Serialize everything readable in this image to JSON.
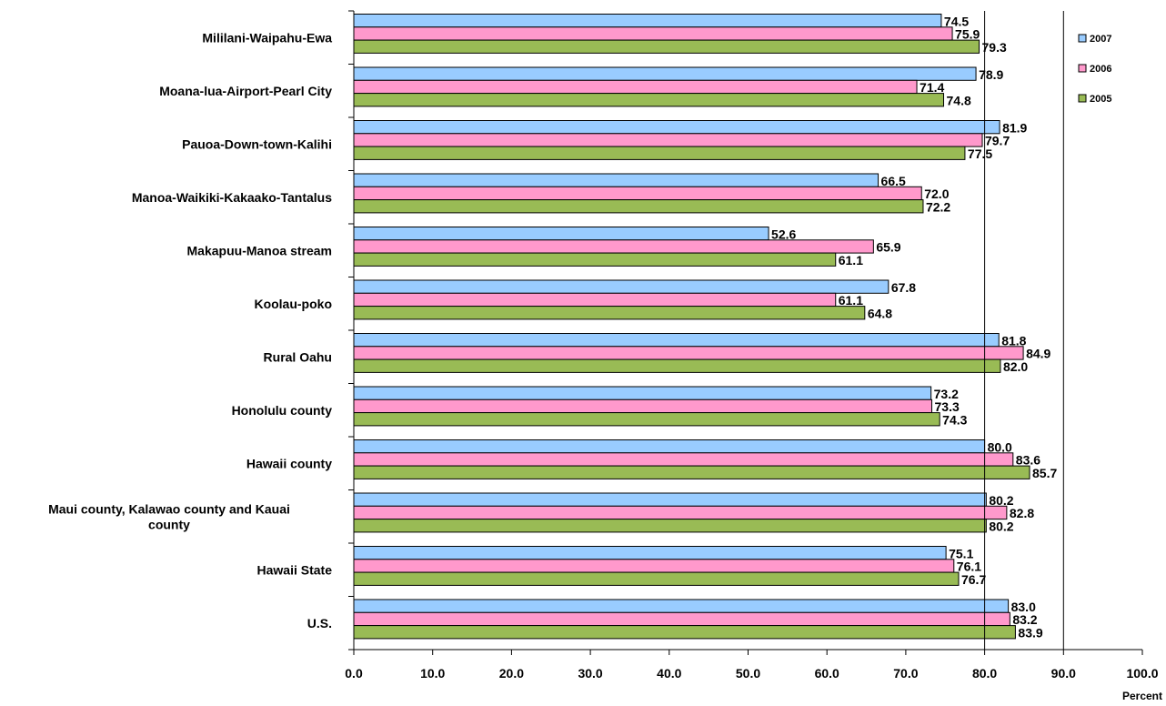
{
  "chart_data": {
    "type": "bar",
    "orientation": "horizontal",
    "categories": [
      "Mililani-Waipahu-Ewa",
      "Moana-lua-Airport-Pearl  City",
      "Pauoa-Down-town-Kalihi",
      "Manoa-Waikiki-Kakaako-Tantalus",
      "Makapuu-Manoa  stream",
      "Koolau-poko",
      "Rural Oahu",
      "Honolulu county",
      "Hawaii county",
      "Maui county, Kalawao county and Kauai county",
      "Hawaii State",
      "U.S."
    ],
    "series": [
      {
        "name": "2007",
        "color": "#99CCFF",
        "values": [
          74.5,
          78.9,
          81.9,
          66.5,
          52.6,
          67.8,
          81.8,
          73.2,
          80.0,
          80.2,
          75.1,
          83.0
        ]
      },
      {
        "name": "2006",
        "color": "#FF99CC",
        "values": [
          75.9,
          71.4,
          79.7,
          72.0,
          65.9,
          61.1,
          84.9,
          73.3,
          83.6,
          82.8,
          76.1,
          83.2
        ]
      },
      {
        "name": "2005",
        "color": "#99BB55",
        "values": [
          79.3,
          74.8,
          77.5,
          72.2,
          61.1,
          64.8,
          82.0,
          74.3,
          85.7,
          80.2,
          76.7,
          83.9
        ]
      }
    ],
    "xlabel": "Percent",
    "xlim": [
      0,
      100
    ],
    "xticks": [
      "0.0",
      "10.0",
      "20.0",
      "30.0",
      "40.0",
      "50.0",
      "60.0",
      "70.0",
      "80.0",
      "90.0",
      "100.0"
    ],
    "gridlines": [
      80,
      90
    ],
    "legend_position": "top-right",
    "label_decimals": 1
  }
}
